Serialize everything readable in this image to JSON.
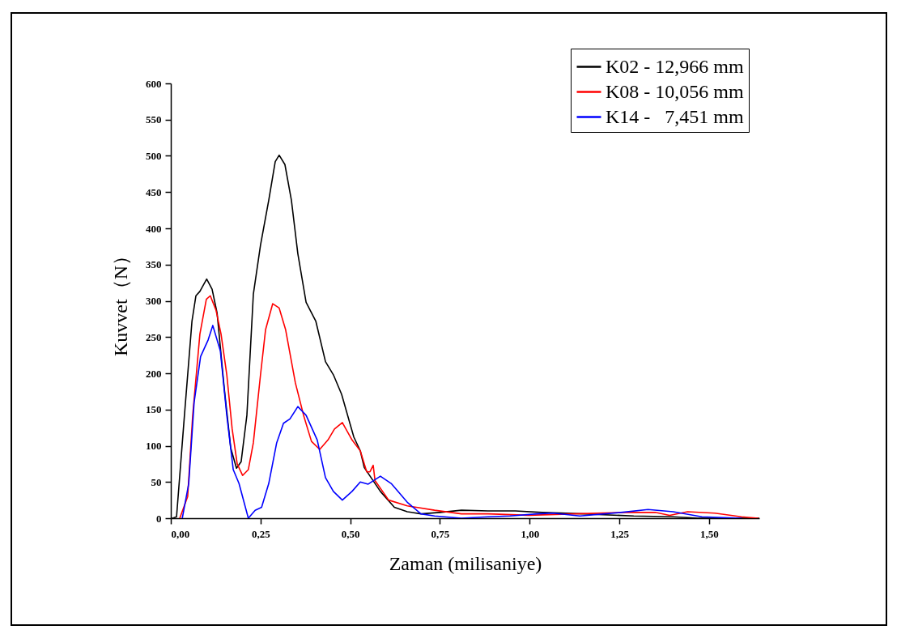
{
  "chart_data": {
    "type": "line",
    "xlabel": "Zaman (milisaniye)",
    "ylabel": "Kuvvet（N）",
    "xlim": [
      0,
      1.64
    ],
    "ylim": [
      0,
      600
    ],
    "xticks": [
      {
        "value": 0,
        "label": "0,00"
      },
      {
        "value": 0.25,
        "label": "0,25"
      },
      {
        "value": 0.5,
        "label": "0,50"
      },
      {
        "value": 0.75,
        "label": "0,75"
      },
      {
        "value": 1,
        "label": "1,00"
      },
      {
        "value": 1.25,
        "label": "1,25"
      },
      {
        "value": 1.5,
        "label": "1,50"
      }
    ],
    "yticks": [
      0,
      50,
      100,
      150,
      200,
      250,
      300,
      350,
      400,
      450,
      500,
      550,
      600
    ],
    "grid": false,
    "legend": "top right",
    "marker": "none",
    "line_style": "solid",
    "series": [
      {
        "name": "K02 - 12,966 mm",
        "color": "#000000",
        "x": [
          0,
          0.005,
          0.016,
          0.038,
          0.059,
          0.07,
          0.081,
          0.1,
          0.115,
          0.129,
          0.149,
          0.167,
          0.183,
          0.196,
          0.212,
          0.23,
          0.25,
          0.273,
          0.291,
          0.302,
          0.318,
          0.336,
          0.354,
          0.377,
          0.404,
          0.431,
          0.453,
          0.476,
          0.499,
          0.51,
          0.528,
          0.539,
          0.584,
          0.623,
          0.659,
          0.697,
          0.749,
          0.81,
          0.884,
          0.96,
          1.035,
          1.15,
          1.29,
          1.4,
          1.47,
          1.64
        ],
        "values": [
          0,
          0,
          2,
          142,
          272,
          307,
          313,
          330,
          316,
          283,
          179,
          97,
          69,
          78,
          142,
          309,
          377,
          439,
          492,
          501,
          488,
          439,
          365,
          298,
          272,
          216,
          198,
          171,
          131,
          112,
          93,
          70,
          37,
          15,
          9,
          6,
          8,
          11,
          10,
          10,
          8,
          6,
          3,
          2,
          0,
          0
        ]
      },
      {
        "name": "K08 - 10,056 mm",
        "color": "#ff0000",
        "x": [
          0.025,
          0.047,
          0.061,
          0.081,
          0.099,
          0.11,
          0.126,
          0.14,
          0.156,
          0.171,
          0.185,
          0.2,
          0.216,
          0.23,
          0.25,
          0.264,
          0.284,
          0.302,
          0.32,
          0.347,
          0.37,
          0.392,
          0.415,
          0.438,
          0.456,
          0.478,
          0.505,
          0.528,
          0.546,
          0.555,
          0.564,
          0.569,
          0.607,
          0.659,
          0.735,
          0.81,
          0.884,
          0.997,
          1.126,
          1.254,
          1.35,
          1.39,
          1.44,
          1.516,
          1.59,
          1.637
        ],
        "values": [
          0,
          30,
          142,
          254,
          302,
          307,
          287,
          254,
          198,
          123,
          75,
          59,
          67,
          104,
          198,
          260,
          296,
          290,
          260,
          187,
          142,
          106,
          95,
          108,
          123,
          132,
          108,
          93,
          64,
          64,
          73,
          52,
          25,
          17,
          11,
          6,
          6,
          4,
          6,
          8,
          8,
          4,
          9,
          7,
          2,
          0
        ]
      },
      {
        "name": "K14 -   7,451 mm",
        "color": "#0000ff",
        "x": [
          0.032,
          0.05,
          0.065,
          0.083,
          0.104,
          0.117,
          0.138,
          0.156,
          0.174,
          0.19,
          0.216,
          0.235,
          0.253,
          0.273,
          0.295,
          0.314,
          0.332,
          0.354,
          0.377,
          0.408,
          0.431,
          0.453,
          0.478,
          0.505,
          0.528,
          0.55,
          0.584,
          0.614,
          0.659,
          0.697,
          0.735,
          0.81,
          0.884,
          0.945,
          1.02,
          1.065,
          1.14,
          1.254,
          1.33,
          1.4,
          1.48,
          1.59
        ],
        "values": [
          0,
          48,
          160,
          223,
          246,
          266,
          231,
          142,
          67,
          48,
          0,
          11,
          15,
          48,
          104,
          131,
          137,
          154,
          142,
          108,
          56,
          37,
          25,
          37,
          50,
          47,
          58,
          48,
          22,
          6,
          3,
          0,
          2,
          3,
          6,
          7,
          3,
          8,
          12,
          9,
          2,
          0
        ]
      }
    ]
  }
}
